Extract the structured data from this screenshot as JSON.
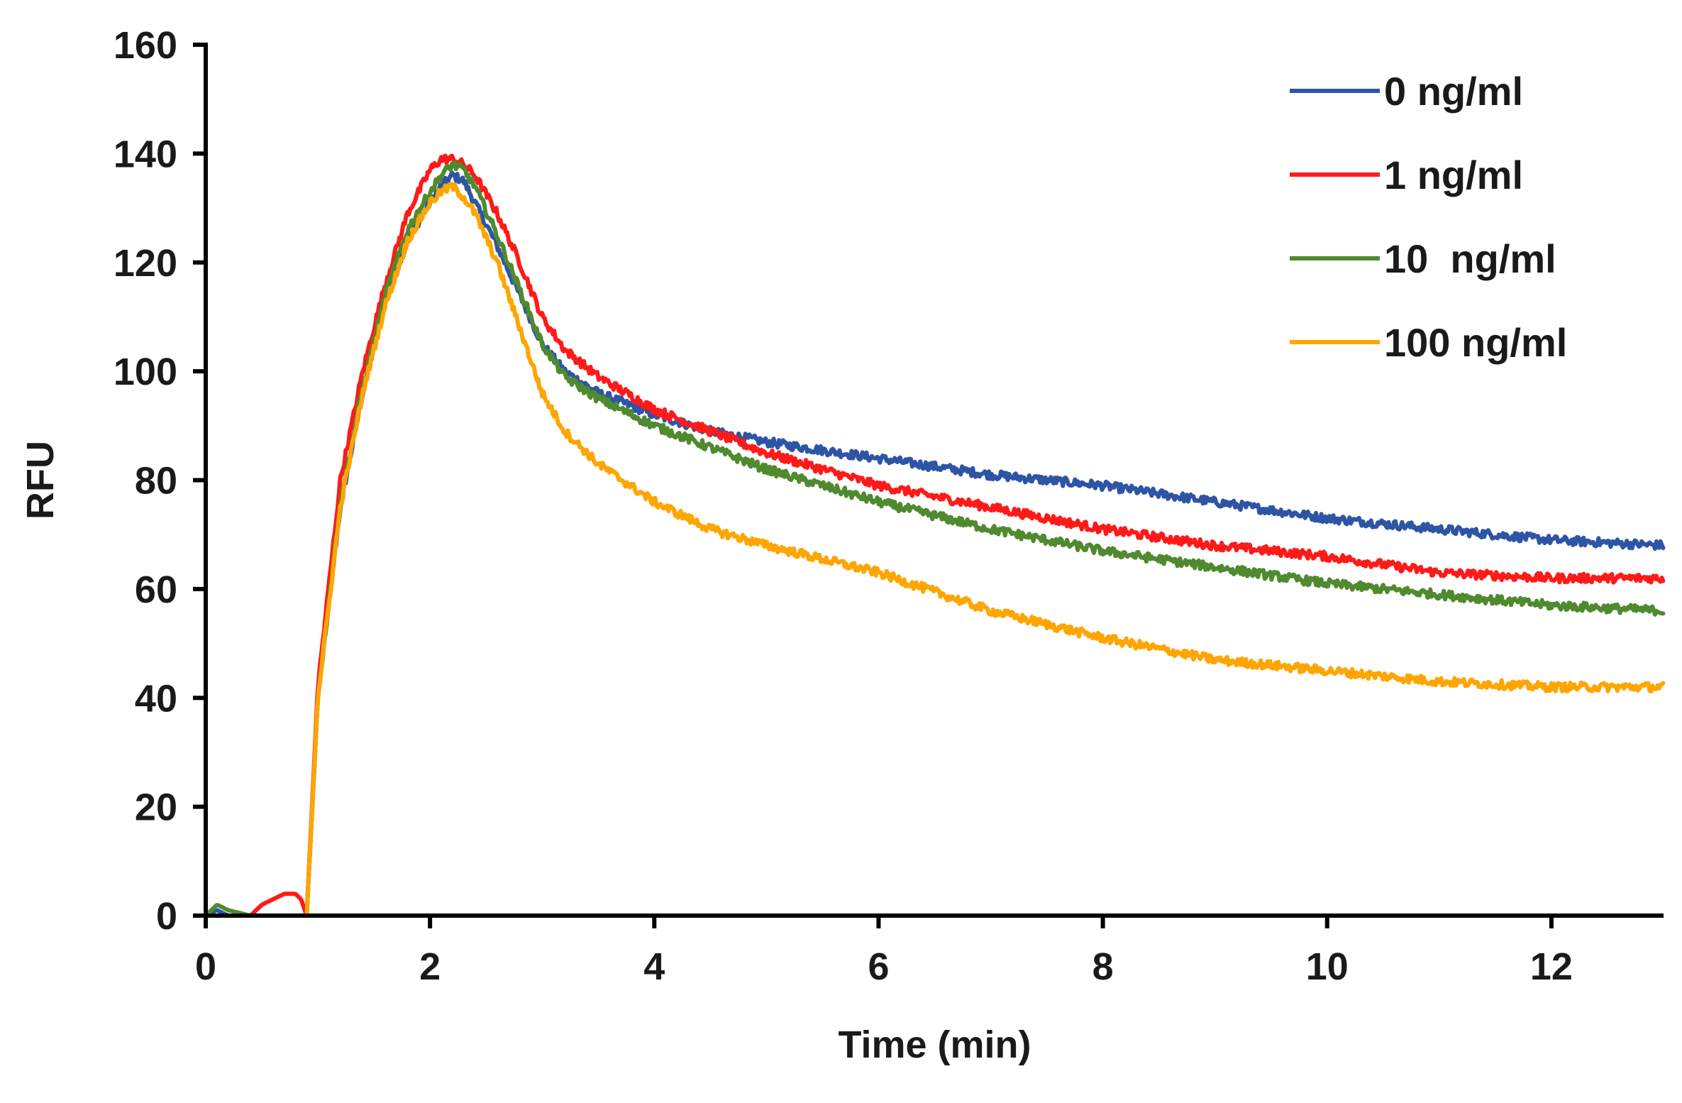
{
  "chart_data": {
    "type": "line",
    "title": "",
    "xlabel": "Time (min)",
    "ylabel": "RFU",
    "xlim": [
      0,
      13
    ],
    "ylim": [
      0,
      160
    ],
    "x_ticks": [
      0,
      2,
      4,
      6,
      8,
      10,
      12
    ],
    "x_tick_labels": [
      "0",
      "2",
      "4",
      "6",
      "8",
      "10",
      "12"
    ],
    "y_ticks": [
      0,
      20,
      40,
      60,
      80,
      100,
      120,
      140,
      160
    ],
    "y_tick_labels": [
      "0",
      "20",
      "40",
      "60",
      "80",
      "100",
      "120",
      "140",
      "160"
    ],
    "grid": false,
    "legend_position": "top-right",
    "series": [
      {
        "name": "0 ng/ml",
        "color": "#2E55A5",
        "x": [
          0,
          0.1,
          0.2,
          0.4,
          0.6,
          0.8,
          0.9,
          1.0,
          1.2,
          1.4,
          1.6,
          1.8,
          2.0,
          2.1,
          2.2,
          2.3,
          2.4,
          2.6,
          2.8,
          3.0,
          3.2,
          3.5,
          4.0,
          4.5,
          5.0,
          6.0,
          7.0,
          8.0,
          9.0,
          10.0,
          11.0,
          12.0,
          13.0
        ],
        "y": [
          0,
          1,
          0,
          0,
          0,
          0,
          0,
          40,
          75,
          96,
          113,
          124,
          131,
          134,
          136,
          135,
          131,
          123,
          114,
          105,
          100,
          96,
          92,
          89,
          87,
          84,
          81,
          79,
          76,
          73,
          71,
          69,
          68
        ]
      },
      {
        "name": "1 ng/ml",
        "color": "#FF1A1A",
        "x": [
          0,
          0.2,
          0.4,
          0.5,
          0.6,
          0.7,
          0.8,
          0.85,
          0.9,
          1.0,
          1.2,
          1.4,
          1.6,
          1.8,
          2.0,
          2.1,
          2.2,
          2.3,
          2.4,
          2.6,
          2.8,
          3.0,
          3.2,
          3.5,
          4.0,
          4.5,
          5.0,
          6.0,
          7.0,
          8.0,
          9.0,
          10.0,
          11.0,
          12.0,
          13.0
        ],
        "y": [
          0,
          0,
          0,
          2,
          3,
          4,
          4,
          3,
          0,
          42,
          80,
          100,
          116,
          129,
          137,
          139,
          139,
          138,
          136,
          129,
          120,
          110,
          104,
          99,
          93,
          89,
          85,
          79,
          75,
          71,
          68,
          66,
          63,
          62,
          62
        ]
      },
      {
        "name": "10  ng/ml",
        "color": "#4F8A2F",
        "x": [
          0,
          0.1,
          0.2,
          0.4,
          0.6,
          0.8,
          0.9,
          1.0,
          1.2,
          1.4,
          1.6,
          1.8,
          2.0,
          2.1,
          2.2,
          2.3,
          2.4,
          2.6,
          2.8,
          3.0,
          3.2,
          3.5,
          4.0,
          4.5,
          5.0,
          6.0,
          7.0,
          8.0,
          9.0,
          10.0,
          11.0,
          12.0,
          13.0
        ],
        "y": [
          0,
          2,
          1,
          0,
          0,
          0,
          0,
          40,
          76,
          97,
          114,
          126,
          133,
          136,
          138,
          137,
          134,
          125,
          115,
          105,
          99,
          95,
          90,
          86,
          82,
          76,
          71,
          67,
          64,
          61,
          59,
          57,
          56
        ]
      },
      {
        "name": "100 ng/ml",
        "color": "#FFA500",
        "x": [
          0,
          0.2,
          0.4,
          0.6,
          0.8,
          0.9,
          1.0,
          1.2,
          1.4,
          1.6,
          1.8,
          2.0,
          2.1,
          2.2,
          2.3,
          2.4,
          2.6,
          2.8,
          3.0,
          3.2,
          3.5,
          4.0,
          4.5,
          5.0,
          6.0,
          7.0,
          8.0,
          9.0,
          10.0,
          11.0,
          12.0,
          13.0
        ],
        "y": [
          0,
          0,
          0,
          0,
          0,
          0,
          40,
          75,
          96,
          112,
          124,
          131,
          133,
          134,
          132,
          129,
          120,
          108,
          96,
          89,
          83,
          76,
          71,
          68,
          63,
          56,
          51,
          47,
          45,
          43,
          42,
          42
        ]
      }
    ]
  }
}
